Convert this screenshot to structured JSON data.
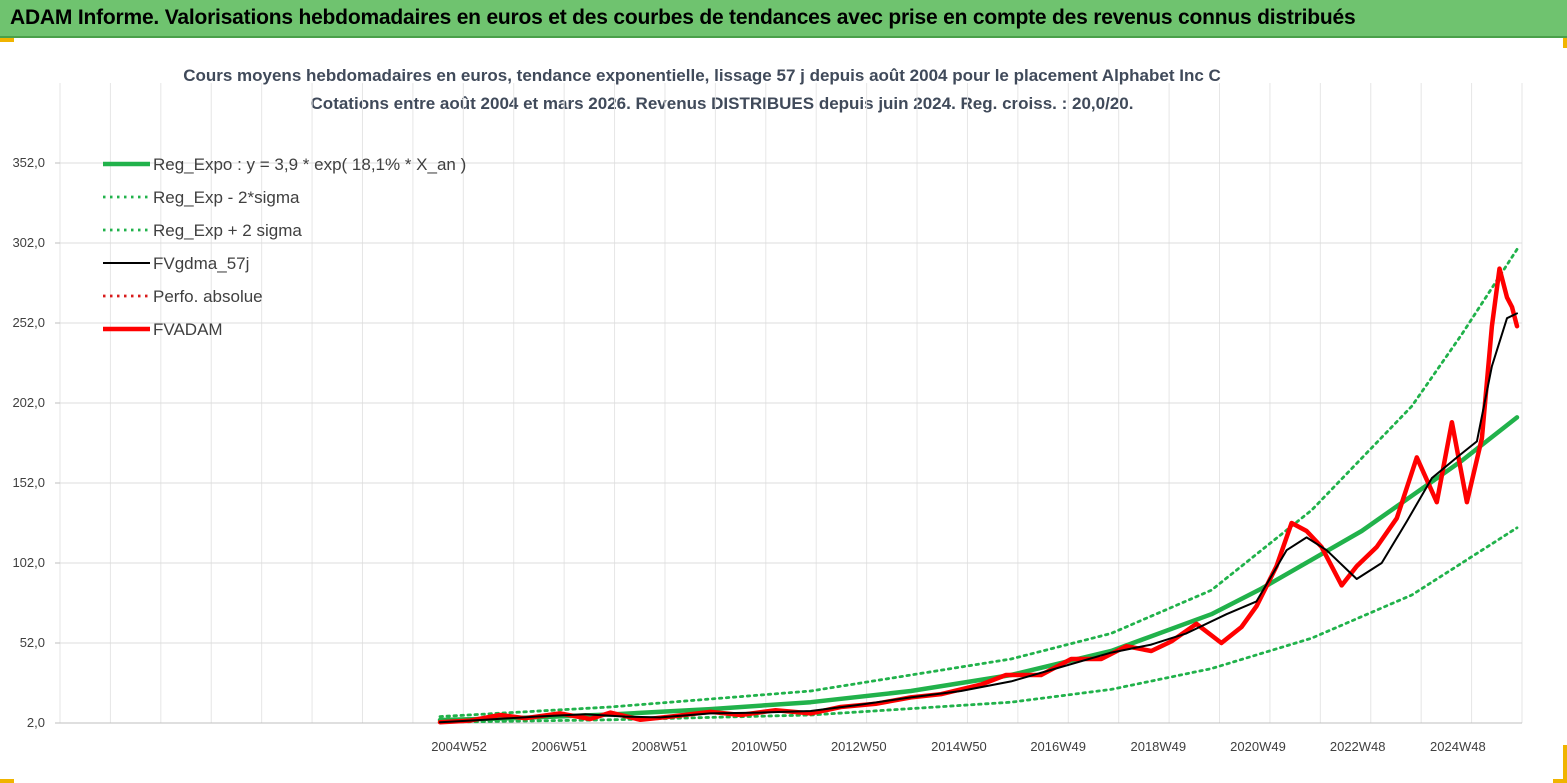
{
  "header": {
    "title": "ADAM Informe. Valorisations hebdomadaires en euros et des courbes de tendances avec prise en compte des revenus connus distribués"
  },
  "chart_data": {
    "type": "line",
    "title": "Cours moyens hebdomadaires en euros, tendance exponentielle, lissage 57 j depuis août 2004 pour le placement Alphabet Inc C",
    "subtitle": "Cotations entre août 2004 et mars 2026. Revenus DISTRIBUES depuis juin 2024. Reg. croiss. : 20,0/20.",
    "x_tick_labels": [
      "2004W52",
      "2006W51",
      "2008W51",
      "2010W50",
      "2012W50",
      "2014W50",
      "2016W49",
      "2018W49",
      "2020W49",
      "2022W48",
      "2024W48"
    ],
    "x_range": [
      2004.6,
      2026.2
    ],
    "x_tick_positions": [
      2004.98,
      2006.98,
      2008.98,
      2010.97,
      2012.96,
      2014.96,
      2016.94,
      2018.94,
      2020.93,
      2022.92,
      2024.92
    ],
    "y_tick_labels": [
      "2,0",
      "52,0",
      "102,0",
      "152,0",
      "202,0",
      "252,0",
      "302,0",
      "352,0"
    ],
    "ylim": [
      2,
      352
    ],
    "y_ticks": [
      2,
      52,
      102,
      152,
      202,
      252,
      302,
      352
    ],
    "grid": true,
    "legend_position": "top-left",
    "series": [
      {
        "name": "Reg_Expo : y = 3,9 * exp( 18,1% *  X_an )",
        "color": "#21b24b",
        "style": "solid-thick",
        "x": [
          2004.6,
          2006,
          2008,
          2010,
          2012,
          2014,
          2016,
          2018,
          2020,
          2021,
          2022,
          2023,
          2024,
          2025,
          2026.1
        ],
        "values": [
          3.9,
          5.0,
          7.3,
          10.7,
          15.0,
          22.0,
          32.0,
          47.0,
          70.0,
          86.0,
          104.0,
          122.0,
          144.0,
          166.0,
          193.0
        ]
      },
      {
        "name": "Reg_Exp - 2*sigma",
        "color": "#21b24b",
        "style": "dotted",
        "x": [
          2004.6,
          2008,
          2012,
          2016,
          2018,
          2020,
          2022,
          2024,
          2026.1
        ],
        "values": [
          2.5,
          4.0,
          7.0,
          15.0,
          23.0,
          36.0,
          55.0,
          82.0,
          124.0
        ]
      },
      {
        "name": "Reg_Exp + 2 sigma",
        "color": "#21b24b",
        "style": "dotted",
        "x": [
          2004.6,
          2008,
          2012,
          2016,
          2018,
          2020,
          2022,
          2024,
          2025,
          2026.1
        ],
        "values": [
          6.0,
          12.0,
          22.0,
          42.0,
          58.0,
          85.0,
          135.0,
          200.0,
          245.0,
          298.0
        ]
      },
      {
        "name": "FVgdma_57j",
        "color": "#000000",
        "style": "solid",
        "x": [
          2004.6,
          2005.5,
          2006.5,
          2007.5,
          2008.3,
          2009,
          2010,
          2011,
          2012,
          2013,
          2014,
          2015,
          2016,
          2017,
          2018,
          2018.8,
          2019.5,
          2020.3,
          2020.9,
          2021.5,
          2021.9,
          2022.3,
          2022.9,
          2023.4,
          2023.9,
          2024.4,
          2024.9,
          2025.3,
          2025.6,
          2025.9,
          2026.1
        ],
        "values": [
          2.5,
          4.0,
          6.0,
          7.5,
          6.0,
          5.5,
          8.0,
          8.5,
          9.5,
          13.5,
          18.0,
          22.0,
          28.0,
          37.0,
          46.0,
          51.0,
          58.0,
          70.0,
          78.0,
          110.0,
          118.0,
          110.0,
          92.0,
          102.0,
          128.0,
          155.0,
          168.0,
          178.0,
          225.0,
          255.0,
          258.0
        ]
      },
      {
        "name": "Perfo. absolue",
        "color": "#d81b1b",
        "style": "dotted",
        "x": [
          2004.6,
          2026.1
        ],
        "values": [
          2.5,
          258.0
        ]
      },
      {
        "name": "FVADAM",
        "color": "#ff0000",
        "style": "solid-thick",
        "x": [
          2004.6,
          2005.2,
          2005.8,
          2006.3,
          2007,
          2007.6,
          2008,
          2008.6,
          2009.2,
          2010,
          2010.6,
          2011.3,
          2012,
          2012.6,
          2013.3,
          2014,
          2014.6,
          2015.4,
          2015.9,
          2016.6,
          2017.2,
          2017.8,
          2018.3,
          2018.8,
          2019.2,
          2019.7,
          2020.2,
          2020.6,
          2020.9,
          2021.3,
          2021.6,
          2021.9,
          2022.2,
          2022.6,
          2022.9,
          2023.3,
          2023.7,
          2024.1,
          2024.5,
          2024.8,
          2025.1,
          2025.4,
          2025.6,
          2025.75,
          2025.9,
          2026.0,
          2026.1
        ],
        "values": [
          2.5,
          3.5,
          7.0,
          5.0,
          8.0,
          4.5,
          8.5,
          4.0,
          6.0,
          9.0,
          7.0,
          10.0,
          8.0,
          12.0,
          14.0,
          18.0,
          20.0,
          26.0,
          32.0,
          32.0,
          42.0,
          42.0,
          50.0,
          47.0,
          53.0,
          64.0,
          52.0,
          62.0,
          75.0,
          100.0,
          127.0,
          122.0,
          112.0,
          88.0,
          100.0,
          112.0,
          130.0,
          168.0,
          140.0,
          190.0,
          140.0,
          180.0,
          250.0,
          286.0,
          268.0,
          262.0,
          250.0
        ]
      }
    ]
  }
}
